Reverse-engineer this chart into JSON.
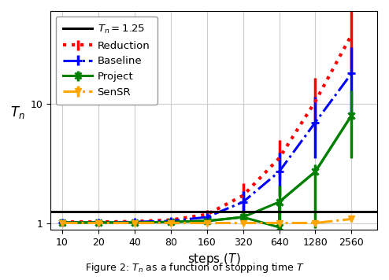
{
  "x_ticks": [
    10,
    20,
    40,
    80,
    160,
    320,
    640,
    1280,
    2560
  ],
  "x_tick_labels": [
    "10",
    "20",
    "40",
    "80",
    "160",
    "320",
    "640",
    "1280",
    "2560"
  ],
  "xlabel": "steps ($T$)",
  "ylabel": "$T_n$",
  "hline_y": 1.25,
  "hline_label": "$T_n = 1.25$",
  "reduction_x": [
    10,
    20,
    40,
    80,
    160,
    320,
    640,
    1280,
    2560
  ],
  "reduction_y": [
    1.02,
    1.02,
    1.03,
    1.06,
    1.18,
    1.7,
    3.5,
    10.5,
    38.0
  ],
  "reduction_yerr_lo": [
    0.015,
    0.015,
    0.02,
    0.04,
    0.1,
    0.45,
    1.2,
    4.5,
    20.0
  ],
  "reduction_yerr_hi": [
    0.015,
    0.015,
    0.02,
    0.04,
    0.1,
    0.45,
    1.5,
    6.0,
    25.0
  ],
  "baseline_x": [
    10,
    20,
    40,
    80,
    160,
    320,
    640,
    1280,
    2560
  ],
  "baseline_y": [
    1.01,
    1.01,
    1.02,
    1.04,
    1.12,
    1.5,
    2.7,
    7.0,
    18.0
  ],
  "baseline_yerr_lo": [
    0.01,
    0.01,
    0.015,
    0.03,
    0.07,
    0.35,
    1.0,
    3.5,
    10.0
  ],
  "baseline_yerr_hi": [
    0.01,
    0.01,
    0.015,
    0.03,
    0.07,
    0.35,
    1.2,
    4.5,
    12.0
  ],
  "project_x": [
    10,
    20,
    40,
    80,
    160,
    320,
    640,
    1280,
    2560
  ],
  "project_y": [
    1.01,
    1.01,
    1.01,
    1.02,
    1.04,
    1.12,
    1.5,
    2.7,
    8.0
  ],
  "project_yerr_lo": [
    0.01,
    0.01,
    0.01,
    0.015,
    0.025,
    0.1,
    0.6,
    1.8,
    4.5
  ],
  "project_yerr_hi": [
    0.01,
    0.01,
    0.01,
    0.015,
    0.025,
    0.1,
    0.55,
    0.4,
    5.0
  ],
  "project_dip_x": [
    640
  ],
  "project_dip_y": [
    0.92
  ],
  "sensr_x": [
    10,
    20,
    40,
    80,
    160,
    320,
    640,
    1280,
    2560
  ],
  "sensr_y": [
    1.0,
    1.0,
    1.0,
    1.0,
    1.0,
    1.0,
    1.0,
    1.0,
    1.08
  ],
  "sensr_yerr_lo": [
    0.005,
    0.005,
    0.005,
    0.005,
    0.005,
    0.005,
    0.005,
    0.005,
    0.06
  ],
  "sensr_yerr_hi": [
    0.005,
    0.005,
    0.005,
    0.005,
    0.005,
    0.005,
    0.005,
    0.005,
    0.06
  ],
  "reduction_color": "#FF0000",
  "baseline_color": "#0000FF",
  "project_color": "#008000",
  "sensr_color": "#FFA500",
  "hline_color": "#000000",
  "bg_color": "#FFFFFF",
  "grid_color": "#CCCCCC",
  "figsize": [
    4.94,
    3.56
  ],
  "caption": "Figure 2: $T_n$ as a function of stopping time $T$"
}
